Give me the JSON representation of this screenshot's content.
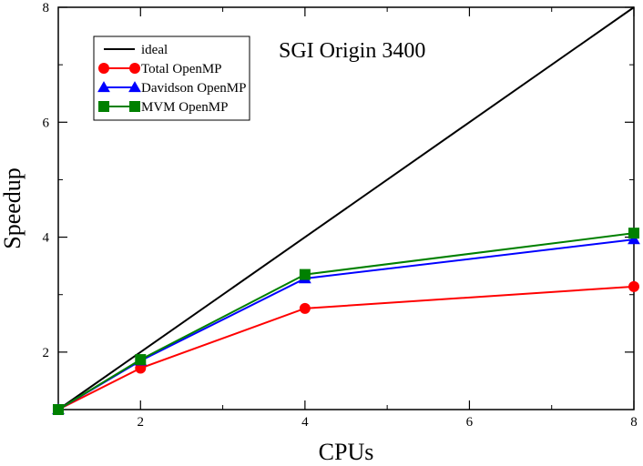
{
  "chart_data": {
    "type": "line",
    "title": "SGI Origin 3400",
    "xlabel": "CPUs",
    "ylabel": "Speedup",
    "xlim": [
      1,
      8
    ],
    "ylim": [
      1,
      8
    ],
    "x_major_ticks": [
      2,
      4,
      6,
      8
    ],
    "x_minor_ticks": [
      1,
      3,
      5,
      7
    ],
    "y_major_ticks": [
      2,
      4,
      6,
      8
    ],
    "y_minor_ticks": [
      3,
      5,
      7
    ],
    "legend_position": "top-left",
    "series": [
      {
        "name": "ideal",
        "color": "#000000",
        "marker": "none",
        "x": [
          1,
          8
        ],
        "y": [
          1,
          8
        ]
      },
      {
        "name": "Total OpenMP",
        "color": "#ff0000",
        "marker": "circle",
        "x": [
          1,
          2,
          4,
          8
        ],
        "y": [
          1.0,
          1.72,
          2.76,
          3.14
        ]
      },
      {
        "name": "Davidson OpenMP",
        "color": "#0000ff",
        "marker": "triangle",
        "x": [
          1,
          2,
          4,
          8
        ],
        "y": [
          1.0,
          1.85,
          3.28,
          3.96
        ]
      },
      {
        "name": "MVM OpenMP",
        "color": "#008000",
        "marker": "square",
        "x": [
          1,
          2,
          4,
          8
        ],
        "y": [
          1.0,
          1.87,
          3.35,
          4.07
        ]
      }
    ]
  }
}
